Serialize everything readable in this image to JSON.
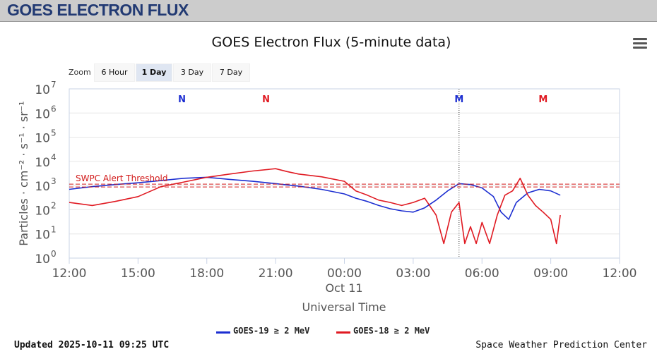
{
  "header": {
    "title": "GOES ELECTRON FLUX"
  },
  "chart_title": "GOES Electron Flux (5-minute data)",
  "zoom": {
    "label": "Zoom",
    "buttons": [
      {
        "label": "6 Hour",
        "active": false
      },
      {
        "label": "1 Day",
        "active": true
      },
      {
        "label": "3 Day",
        "active": false
      },
      {
        "label": "7 Day",
        "active": false
      }
    ]
  },
  "footer": {
    "updated": "Updated 2025-10-11 09:25 UTC",
    "source": "Space Weather Prediction Center"
  },
  "colors": {
    "goes19": "#1c2ed1",
    "goes18": "#e01a22",
    "threshold": "#d21a1a",
    "grid": "#e6e6e6"
  },
  "chart_data": {
    "type": "line",
    "title": "GOES Electron Flux (5-minute data)",
    "xlabel": "Universal Time",
    "ylabel": "Particles · cm⁻² · s⁻¹ · sr⁻¹",
    "y_scale": "log",
    "ylim": [
      1,
      10000000
    ],
    "xlim": [
      "2025-10-10 12:00",
      "2025-10-11 12:00"
    ],
    "x_ticks": [
      "12:00",
      "15:00",
      "18:00",
      "21:00",
      "00:00",
      "03:00",
      "06:00",
      "09:00",
      "12:00"
    ],
    "x_date_label": "Oct 11",
    "y_ticks": [
      {
        "mantissa": "10",
        "exp": "0",
        "value": 1
      },
      {
        "mantissa": "10",
        "exp": "1",
        "value": 10
      },
      {
        "mantissa": "10",
        "exp": "2",
        "value": 100
      },
      {
        "mantissa": "10",
        "exp": "3",
        "value": 1000
      },
      {
        "mantissa": "10",
        "exp": "4",
        "value": 10000
      },
      {
        "mantissa": "10",
        "exp": "5",
        "value": 100000
      },
      {
        "mantissa": "10",
        "exp": "6",
        "value": 1000000
      },
      {
        "mantissa": "10",
        "exp": "7",
        "value": 10000000
      }
    ],
    "threshold": {
      "label": "SWPC Alert Threshold",
      "value": 1000
    },
    "annotations": [
      {
        "text": "N",
        "x": "2025-10-10 16:55",
        "series": "GOES-19"
      },
      {
        "text": "N",
        "x": "2025-10-10 20:35",
        "series": "GOES-18"
      },
      {
        "text": "M",
        "x": "2025-10-11 05:00",
        "series": "GOES-19"
      },
      {
        "text": "M",
        "x": "2025-10-11 08:40",
        "series": "GOES-18"
      }
    ],
    "marker_line_x": "2025-10-11 05:00",
    "series": [
      {
        "name": "GOES-19 ≥ 2 MeV",
        "color": "#1c2ed1",
        "x": [
          "2025-10-10 12:00",
          "2025-10-10 13:00",
          "2025-10-10 14:00",
          "2025-10-10 15:00",
          "2025-10-10 16:00",
          "2025-10-10 17:00",
          "2025-10-10 18:00",
          "2025-10-10 19:00",
          "2025-10-10 20:00",
          "2025-10-10 21:00",
          "2025-10-10 22:00",
          "2025-10-10 23:00",
          "2025-10-11 00:00",
          "2025-10-11 00:30",
          "2025-10-11 01:00",
          "2025-10-11 01:30",
          "2025-10-11 02:00",
          "2025-10-11 02:30",
          "2025-10-11 03:00",
          "2025-10-11 03:30",
          "2025-10-11 04:00",
          "2025-10-11 04:30",
          "2025-10-11 05:00",
          "2025-10-11 05:30",
          "2025-10-11 06:00",
          "2025-10-11 06:30",
          "2025-10-11 06:50",
          "2025-10-11 07:10",
          "2025-10-11 07:30",
          "2025-10-11 08:00",
          "2025-10-11 08:30",
          "2025-10-11 09:00",
          "2025-10-11 09:25"
        ],
        "y": [
          700,
          900,
          1100,
          1300,
          1600,
          2000,
          2200,
          1800,
          1500,
          1200,
          950,
          700,
          450,
          300,
          220,
          150,
          110,
          90,
          80,
          120,
          250,
          600,
          1200,
          1100,
          800,
          350,
          80,
          40,
          200,
          500,
          700,
          600,
          400
        ]
      },
      {
        "name": "GOES-18 ≥ 2 MeV",
        "color": "#e01a22",
        "x": [
          "2025-10-10 12:00",
          "2025-10-10 13:00",
          "2025-10-10 14:00",
          "2025-10-10 15:00",
          "2025-10-10 16:00",
          "2025-10-10 17:00",
          "2025-10-10 18:00",
          "2025-10-10 19:00",
          "2025-10-10 20:00",
          "2025-10-10 21:00",
          "2025-10-10 21:30",
          "2025-10-10 22:00",
          "2025-10-10 23:00",
          "2025-10-11 00:00",
          "2025-10-11 00:30",
          "2025-10-11 01:00",
          "2025-10-11 01:30",
          "2025-10-11 02:00",
          "2025-10-11 02:30",
          "2025-10-11 03:00",
          "2025-10-11 03:30",
          "2025-10-11 04:00",
          "2025-10-11 04:20",
          "2025-10-11 04:40",
          "2025-10-11 05:00",
          "2025-10-11 05:15",
          "2025-10-11 05:30",
          "2025-10-11 05:45",
          "2025-10-11 06:00",
          "2025-10-11 06:20",
          "2025-10-11 06:40",
          "2025-10-11 07:00",
          "2025-10-11 07:20",
          "2025-10-11 07:40",
          "2025-10-11 08:00",
          "2025-10-11 08:20",
          "2025-10-11 08:40",
          "2025-10-11 09:00",
          "2025-10-11 09:15",
          "2025-10-11 09:25"
        ],
        "y": [
          200,
          150,
          220,
          350,
          900,
          1400,
          2200,
          3000,
          4000,
          5000,
          3800,
          3000,
          2300,
          1500,
          600,
          400,
          250,
          200,
          150,
          200,
          300,
          60,
          4,
          80,
          200,
          4,
          20,
          4,
          30,
          4,
          60,
          400,
          600,
          2000,
          400,
          150,
          80,
          40,
          4,
          60
        ]
      }
    ]
  }
}
